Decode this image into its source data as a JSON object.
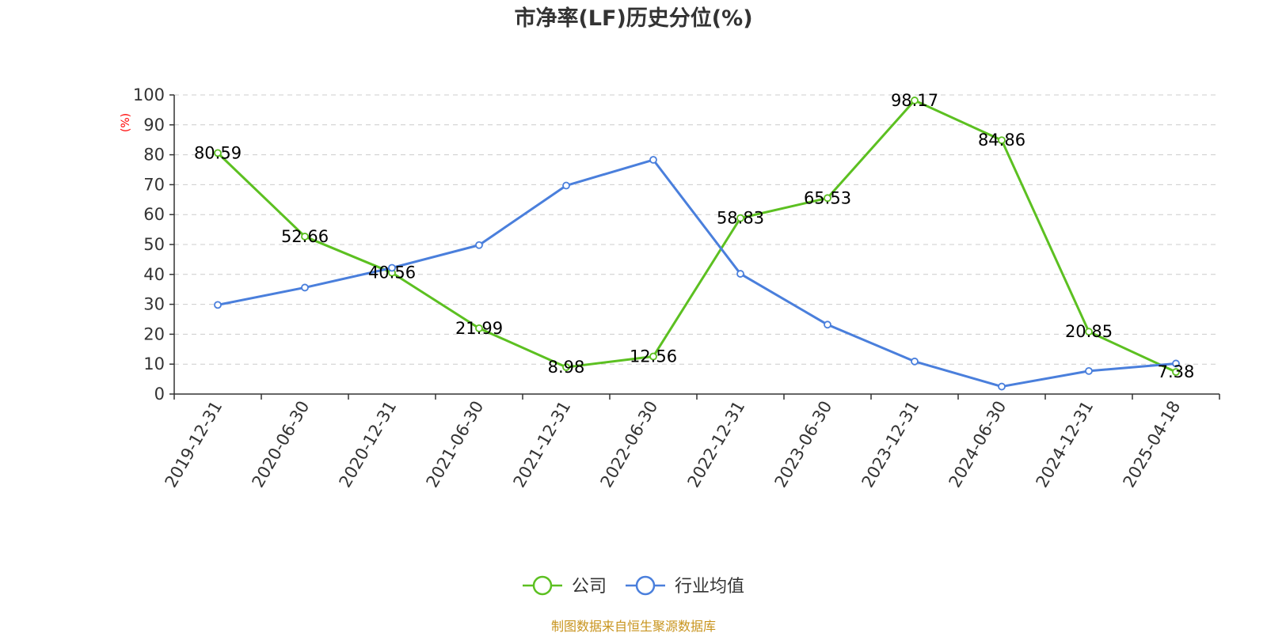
{
  "chart_data": {
    "type": "line",
    "title": "市净率(LF)历史分位(%)",
    "ylabel": "(%)",
    "ylim": [
      0,
      100
    ],
    "yticks": [
      0,
      10,
      20,
      30,
      40,
      50,
      60,
      70,
      80,
      90,
      100
    ],
    "categories": [
      "2019-12-31",
      "2020-06-30",
      "2020-12-31",
      "2021-06-30",
      "2021-12-31",
      "2022-06-30",
      "2022-12-31",
      "2023-06-30",
      "2023-12-31",
      "2024-06-30",
      "2024-12-31",
      "2025-04-18"
    ],
    "series": [
      {
        "name": "公司",
        "color": "#5cc021",
        "values": [
          80.59,
          52.66,
          40.56,
          21.99,
          8.98,
          12.56,
          58.83,
          65.53,
          98.17,
          84.86,
          20.85,
          7.38
        ],
        "labels": [
          "80.59",
          "52.66",
          "40.56",
          "21.99",
          "8.98",
          "12.56",
          "58.83",
          "65.53",
          "98.17",
          "84.86",
          "20.85",
          "7.38"
        ]
      },
      {
        "name": "行业均值",
        "color": "#4a7fdc",
        "values": [
          29.8,
          35.6,
          42.2,
          49.8,
          69.7,
          78.3,
          40.2,
          23.2,
          10.9,
          2.5,
          7.7,
          10.2
        ]
      }
    ],
    "grid": true,
    "legend_position": "bottom-center"
  },
  "footer": {
    "source": "制图数据来自恒生聚源数据库"
  }
}
